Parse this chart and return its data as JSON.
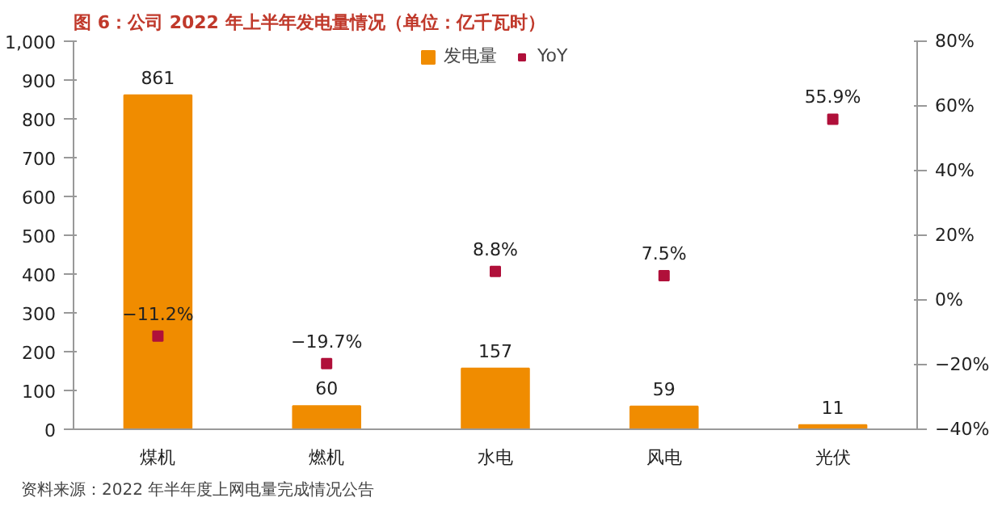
{
  "chart_data": {
    "type": "bar",
    "title": "图 6：公司 2022 年上半年发电量情况（单位：亿千瓦时）",
    "categories": [
      "煤机",
      "燃机",
      "水电",
      "风电",
      "光伏"
    ],
    "series": [
      {
        "name": "发电量",
        "type": "bar",
        "color": "#f08c00",
        "values": [
          861,
          60,
          157,
          59,
          11
        ],
        "value_labels": [
          "861",
          "60",
          "157",
          "59",
          "11"
        ]
      },
      {
        "name": "YoY",
        "type": "scatter",
        "axis": "y2",
        "color": "#b0103a",
        "values": [
          -11.2,
          -19.7,
          8.8,
          7.5,
          55.9
        ],
        "value_labels": [
          "−11.2%",
          "−19.7%",
          "8.8%",
          "7.5%",
          "55.9%"
        ]
      }
    ],
    "ylim": [
      0,
      1000
    ],
    "yticks": [
      0,
      100,
      200,
      300,
      400,
      500,
      600,
      700,
      800,
      900,
      {
        "value": 1000,
        "label": "1,000"
      }
    ],
    "y2lim": [
      -40,
      80
    ],
    "y2ticks": [
      {
        "value": -40,
        "label": "−40%"
      },
      {
        "value": -20,
        "label": "−20%"
      },
      {
        "value": 0,
        "label": "0%"
      },
      {
        "value": 20,
        "label": "20%"
      },
      {
        "value": 40,
        "label": "40%"
      },
      {
        "value": 60,
        "label": "60%"
      },
      {
        "value": 80,
        "label": "80%"
      }
    ],
    "legend": "top",
    "grid": false,
    "marker": "square",
    "annotations": [
      "资料来源：2022 年半年度上网电量完成情况公告"
    ]
  }
}
